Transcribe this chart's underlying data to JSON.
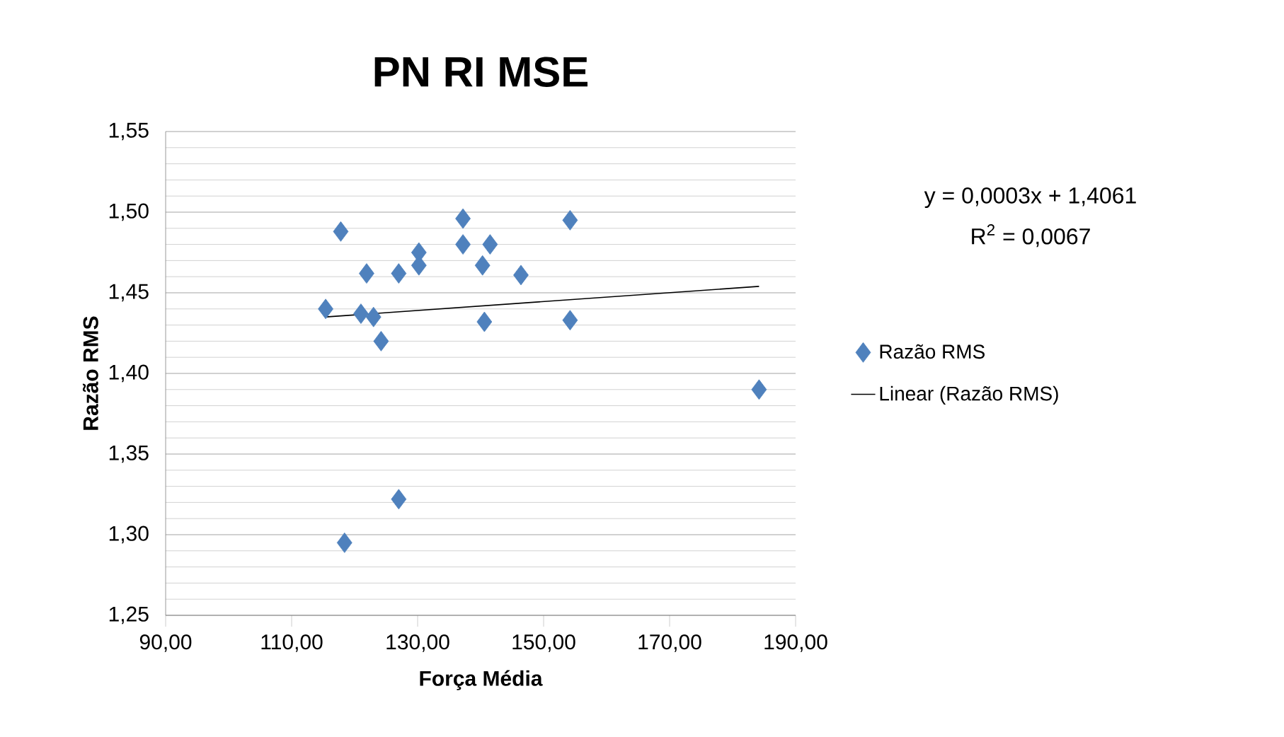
{
  "chart_data": {
    "type": "scatter",
    "title": "PN RI MSE",
    "xlabel": "Força Média",
    "ylabel": "Razão RMS",
    "xlim": [
      90,
      190
    ],
    "ylim": [
      1.25,
      1.55
    ],
    "xticks": [
      {
        "value": 90,
        "label": "90,00"
      },
      {
        "value": 110,
        "label": "110,00"
      },
      {
        "value": 130,
        "label": "130,00"
      },
      {
        "value": 150,
        "label": "150,00"
      },
      {
        "value": 170,
        "label": "170,00"
      },
      {
        "value": 190,
        "label": "190,00"
      }
    ],
    "yticks": [
      {
        "value": 1.25,
        "label": "1,25"
      },
      {
        "value": 1.3,
        "label": "1,30"
      },
      {
        "value": 1.35,
        "label": "1,35"
      },
      {
        "value": 1.4,
        "label": "1,40"
      },
      {
        "value": 1.45,
        "label": "1,45"
      },
      {
        "value": 1.5,
        "label": "1,50"
      },
      {
        "value": 1.55,
        "label": "1,55"
      }
    ],
    "grid": "y",
    "legend": "right",
    "marker": "diamond",
    "series": [
      {
        "name": "Razão RMS",
        "color": "#4f81bd",
        "x": [
          117.8,
          121.9,
          127.0,
          130.2,
          130.2,
          137.2,
          137.2,
          141.5,
          140.3,
          146.4,
          154.2,
          115.4,
          121.0,
          123.0,
          124.2,
          140.6,
          154.2,
          184.2,
          127.0,
          118.4
        ],
        "values": [
          1.488,
          1.462,
          1.462,
          1.475,
          1.467,
          1.496,
          1.48,
          1.48,
          1.467,
          1.461,
          1.495,
          1.44,
          1.437,
          1.435,
          1.42,
          1.432,
          1.433,
          1.39,
          1.322,
          1.295
        ]
      },
      {
        "name": "Linear (Razão RMS)",
        "type": "line",
        "color": "#000000",
        "marker": "none",
        "line_style": "solid",
        "x": [
          115.4,
          184.2
        ],
        "values": [
          1.435,
          1.454
        ]
      }
    ],
    "annotations": [
      "y = 0,0003x + 1,4061",
      "R$^{2}$ = 0,0067"
    ]
  }
}
